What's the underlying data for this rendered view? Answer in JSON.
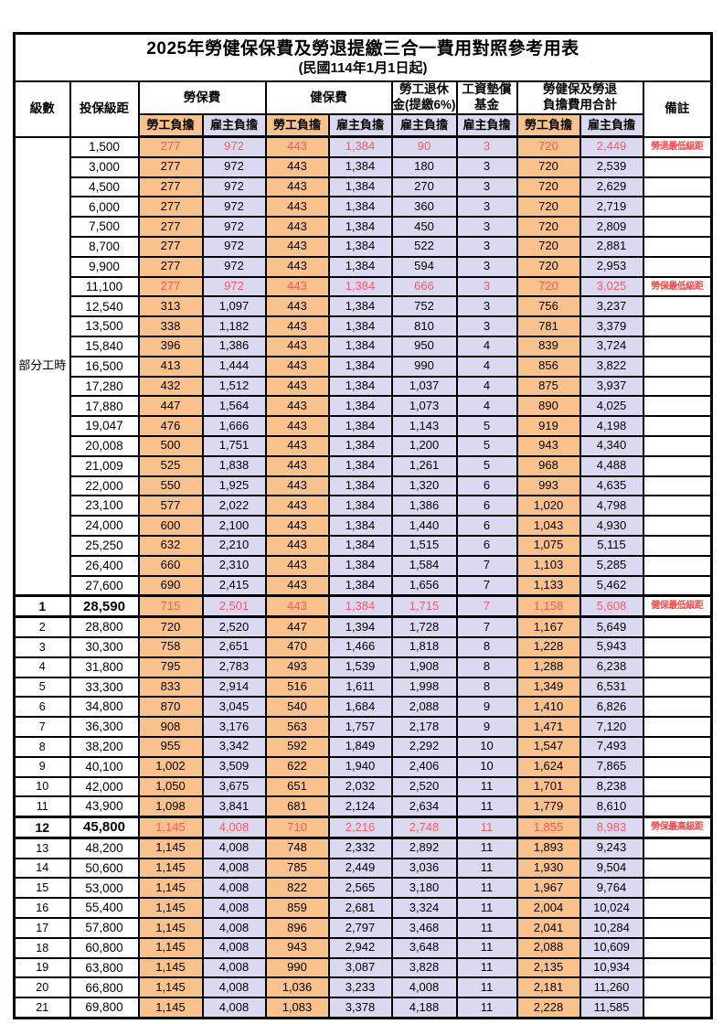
{
  "title": "2025年勞健保保費及勞退提繳三合一費用對照參考用表",
  "subtitle": "(民國114年1月1日起)",
  "colors": {
    "employee_bg": "#f9c28c",
    "employer_bg": "#dbd8f1",
    "highlight_value_text": "#f75d5d",
    "remark_text": "#fb4646",
    "border": "#000000"
  },
  "header": {
    "level": "級數",
    "salary_bracket": "投保級距",
    "labor_insurance": "勞保費",
    "health_insurance": "健保費",
    "pension_line1": "勞工退休",
    "pension_line2": "金(提繳6%)",
    "wage_fund_line1": "工資墊償",
    "wage_fund_line2": "基金",
    "total_line1": "勞健保及勞退",
    "total_line2": "負擔費用合計",
    "remark": "備註",
    "employee_share": "勞工負擔",
    "employer_share": "雇主負擔"
  },
  "table": {
    "part_time_label": "部分工時",
    "part_time_span": 23,
    "rows": [
      {
        "level": "",
        "cells": [
          "1,500",
          "277",
          "972",
          "443",
          "1,384",
          "90",
          "3",
          "720",
          "2,449"
        ],
        "remark": "勞退最低級距",
        "red": true,
        "big": false
      },
      {
        "level": "",
        "cells": [
          "3,000",
          "277",
          "972",
          "443",
          "1,384",
          "180",
          "3",
          "720",
          "2,539"
        ],
        "remark": "",
        "red": false,
        "big": false
      },
      {
        "level": "",
        "cells": [
          "4,500",
          "277",
          "972",
          "443",
          "1,384",
          "270",
          "3",
          "720",
          "2,629"
        ],
        "remark": "",
        "red": false,
        "big": false
      },
      {
        "level": "",
        "cells": [
          "6,000",
          "277",
          "972",
          "443",
          "1,384",
          "360",
          "3",
          "720",
          "2,719"
        ],
        "remark": "",
        "red": false,
        "big": false
      },
      {
        "level": "",
        "cells": [
          "7,500",
          "277",
          "972",
          "443",
          "1,384",
          "450",
          "3",
          "720",
          "2,809"
        ],
        "remark": "",
        "red": false,
        "big": false
      },
      {
        "level": "",
        "cells": [
          "8,700",
          "277",
          "972",
          "443",
          "1,384",
          "522",
          "3",
          "720",
          "2,881"
        ],
        "remark": "",
        "red": false,
        "big": false
      },
      {
        "level": "",
        "cells": [
          "9,900",
          "277",
          "972",
          "443",
          "1,384",
          "594",
          "3",
          "720",
          "2,953"
        ],
        "remark": "",
        "red": false,
        "big": false
      },
      {
        "level": "",
        "cells": [
          "11,100",
          "277",
          "972",
          "443",
          "1,384",
          "666",
          "3",
          "720",
          "3,025"
        ],
        "remark": "勞保最低級距",
        "red": true,
        "big": false
      },
      {
        "level": "",
        "cells": [
          "12,540",
          "313",
          "1,097",
          "443",
          "1,384",
          "752",
          "3",
          "756",
          "3,237"
        ],
        "remark": "",
        "red": false,
        "big": false
      },
      {
        "level": "",
        "cells": [
          "13,500",
          "338",
          "1,182",
          "443",
          "1,384",
          "810",
          "3",
          "781",
          "3,379"
        ],
        "remark": "",
        "red": false,
        "big": false
      },
      {
        "level": "",
        "cells": [
          "15,840",
          "396",
          "1,386",
          "443",
          "1,384",
          "950",
          "4",
          "839",
          "3,724"
        ],
        "remark": "",
        "red": false,
        "big": false
      },
      {
        "level": "",
        "cells": [
          "16,500",
          "413",
          "1,444",
          "443",
          "1,384",
          "990",
          "4",
          "856",
          "3,822"
        ],
        "remark": "",
        "red": false,
        "big": false
      },
      {
        "level": "",
        "cells": [
          "17,280",
          "432",
          "1,512",
          "443",
          "1,384",
          "1,037",
          "4",
          "875",
          "3,937"
        ],
        "remark": "",
        "red": false,
        "big": false
      },
      {
        "level": "",
        "cells": [
          "17,880",
          "447",
          "1,564",
          "443",
          "1,384",
          "1,073",
          "4",
          "890",
          "4,025"
        ],
        "remark": "",
        "red": false,
        "big": false
      },
      {
        "level": "",
        "cells": [
          "19,047",
          "476",
          "1,666",
          "443",
          "1,384",
          "1,143",
          "5",
          "919",
          "4,198"
        ],
        "remark": "",
        "red": false,
        "big": false
      },
      {
        "level": "",
        "cells": [
          "20,008",
          "500",
          "1,751",
          "443",
          "1,384",
          "1,200",
          "5",
          "943",
          "4,340"
        ],
        "remark": "",
        "red": false,
        "big": false
      },
      {
        "level": "",
        "cells": [
          "21,009",
          "525",
          "1,838",
          "443",
          "1,384",
          "1,261",
          "5",
          "968",
          "4,488"
        ],
        "remark": "",
        "red": false,
        "big": false
      },
      {
        "level": "",
        "cells": [
          "22,000",
          "550",
          "1,925",
          "443",
          "1,384",
          "1,320",
          "6",
          "993",
          "4,635"
        ],
        "remark": "",
        "red": false,
        "big": false
      },
      {
        "level": "",
        "cells": [
          "23,100",
          "577",
          "2,022",
          "443",
          "1,384",
          "1,386",
          "6",
          "1,020",
          "4,798"
        ],
        "remark": "",
        "red": false,
        "big": false
      },
      {
        "level": "",
        "cells": [
          "24,000",
          "600",
          "2,100",
          "443",
          "1,384",
          "1,440",
          "6",
          "1,043",
          "4,930"
        ],
        "remark": "",
        "red": false,
        "big": false
      },
      {
        "level": "",
        "cells": [
          "25,250",
          "632",
          "2,210",
          "443",
          "1,384",
          "1,515",
          "6",
          "1,075",
          "5,115"
        ],
        "remark": "",
        "red": false,
        "big": false
      },
      {
        "level": "",
        "cells": [
          "26,400",
          "660",
          "2,310",
          "443",
          "1,384",
          "1,584",
          "7",
          "1,103",
          "5,285"
        ],
        "remark": "",
        "red": false,
        "big": false
      },
      {
        "level": "",
        "cells": [
          "27,600",
          "690",
          "2,415",
          "443",
          "1,384",
          "1,656",
          "7",
          "1,133",
          "5,462"
        ],
        "remark": "",
        "red": false,
        "big": false
      },
      {
        "level": "1",
        "cells": [
          "28,590",
          "715",
          "2,501",
          "443",
          "1,384",
          "1,715",
          "7",
          "1,158",
          "5,608"
        ],
        "remark": "健保最低級距",
        "red": true,
        "big": true
      },
      {
        "level": "2",
        "cells": [
          "28,800",
          "720",
          "2,520",
          "447",
          "1,394",
          "1,728",
          "7",
          "1,167",
          "5,649"
        ],
        "remark": "",
        "red": false,
        "big": false
      },
      {
        "level": "3",
        "cells": [
          "30,300",
          "758",
          "2,651",
          "470",
          "1,466",
          "1,818",
          "8",
          "1,228",
          "5,943"
        ],
        "remark": "",
        "red": false,
        "big": false
      },
      {
        "level": "4",
        "cells": [
          "31,800",
          "795",
          "2,783",
          "493",
          "1,539",
          "1,908",
          "8",
          "1,288",
          "6,238"
        ],
        "remark": "",
        "red": false,
        "big": false
      },
      {
        "level": "5",
        "cells": [
          "33,300",
          "833",
          "2,914",
          "516",
          "1,611",
          "1,998",
          "8",
          "1,349",
          "6,531"
        ],
        "remark": "",
        "red": false,
        "big": false
      },
      {
        "level": "6",
        "cells": [
          "34,800",
          "870",
          "3,045",
          "540",
          "1,684",
          "2,088",
          "9",
          "1,410",
          "6,826"
        ],
        "remark": "",
        "red": false,
        "big": false
      },
      {
        "level": "7",
        "cells": [
          "36,300",
          "908",
          "3,176",
          "563",
          "1,757",
          "2,178",
          "9",
          "1,471",
          "7,120"
        ],
        "remark": "",
        "red": false,
        "big": false
      },
      {
        "level": "8",
        "cells": [
          "38,200",
          "955",
          "3,342",
          "592",
          "1,849",
          "2,292",
          "10",
          "1,547",
          "7,493"
        ],
        "remark": "",
        "red": false,
        "big": false
      },
      {
        "level": "9",
        "cells": [
          "40,100",
          "1,002",
          "3,509",
          "622",
          "1,940",
          "2,406",
          "10",
          "1,624",
          "7,865"
        ],
        "remark": "",
        "red": false,
        "big": false
      },
      {
        "level": "10",
        "cells": [
          "42,000",
          "1,050",
          "3,675",
          "651",
          "2,032",
          "2,520",
          "11",
          "1,701",
          "8,238"
        ],
        "remark": "",
        "red": false,
        "big": false
      },
      {
        "level": "11",
        "cells": [
          "43,900",
          "1,098",
          "3,841",
          "681",
          "2,124",
          "2,634",
          "11",
          "1,779",
          "8,610"
        ],
        "remark": "",
        "red": false,
        "big": false
      },
      {
        "level": "12",
        "cells": [
          "45,800",
          "1,145",
          "4,008",
          "710",
          "2,216",
          "2,748",
          "11",
          "1,855",
          "8,983"
        ],
        "remark": "勞保最高級距",
        "red": true,
        "big": true
      },
      {
        "level": "13",
        "cells": [
          "48,200",
          "1,145",
          "4,008",
          "748",
          "2,332",
          "2,892",
          "11",
          "1,893",
          "9,243"
        ],
        "remark": "",
        "red": false,
        "big": false
      },
      {
        "level": "14",
        "cells": [
          "50,600",
          "1,145",
          "4,008",
          "785",
          "2,449",
          "3,036",
          "11",
          "1,930",
          "9,504"
        ],
        "remark": "",
        "red": false,
        "big": false
      },
      {
        "level": "15",
        "cells": [
          "53,000",
          "1,145",
          "4,008",
          "822",
          "2,565",
          "3,180",
          "11",
          "1,967",
          "9,764"
        ],
        "remark": "",
        "red": false,
        "big": false
      },
      {
        "level": "16",
        "cells": [
          "55,400",
          "1,145",
          "4,008",
          "859",
          "2,681",
          "3,324",
          "11",
          "2,004",
          "10,024"
        ],
        "remark": "",
        "red": false,
        "big": false
      },
      {
        "level": "17",
        "cells": [
          "57,800",
          "1,145",
          "4,008",
          "896",
          "2,797",
          "3,468",
          "11",
          "2,041",
          "10,284"
        ],
        "remark": "",
        "red": false,
        "big": false
      },
      {
        "level": "18",
        "cells": [
          "60,800",
          "1,145",
          "4,008",
          "943",
          "2,942",
          "3,648",
          "11",
          "2,088",
          "10,609"
        ],
        "remark": "",
        "red": false,
        "big": false
      },
      {
        "level": "19",
        "cells": [
          "63,800",
          "1,145",
          "4,008",
          "990",
          "3,087",
          "3,828",
          "11",
          "2,135",
          "10,934"
        ],
        "remark": "",
        "red": false,
        "big": false
      },
      {
        "level": "20",
        "cells": [
          "66,800",
          "1,145",
          "4,008",
          "1,036",
          "3,233",
          "4,008",
          "11",
          "2,181",
          "11,260"
        ],
        "remark": "",
        "red": false,
        "big": false
      },
      {
        "level": "21",
        "cells": [
          "69,800",
          "1,145",
          "4,008",
          "1,083",
          "3,378",
          "4,188",
          "11",
          "2,228",
          "11,585"
        ],
        "remark": "",
        "red": false,
        "big": false
      }
    ]
  }
}
